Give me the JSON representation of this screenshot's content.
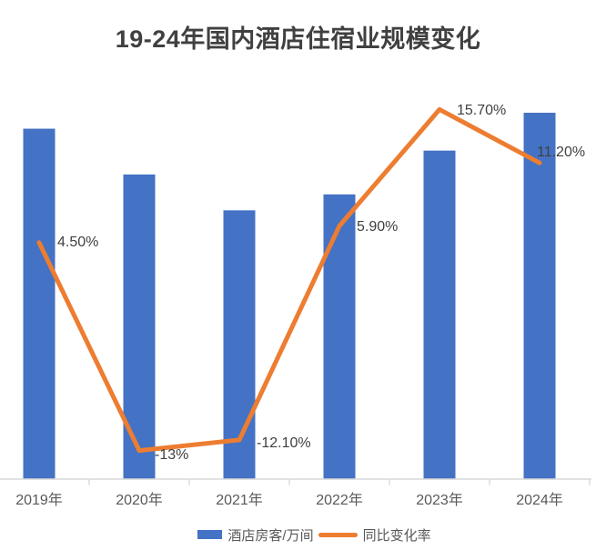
{
  "chart_data": {
    "type": "combo_bar_line",
    "title": "19-24年国内酒店住宿业规模变化",
    "categories": [
      "2019年",
      "2020年",
      "2021年",
      "2022年",
      "2023年",
      "2024年"
    ],
    "series": [
      {
        "name": "酒店房客/万间",
        "type": "bar",
        "axis": "left",
        "color": "#4472C4",
        "values": [
          1760,
          1530,
          1350,
          1430,
          1650,
          1840
        ],
        "values_estimated": true
      },
      {
        "name": "同比变化率",
        "type": "line",
        "axis": "right",
        "color": "#ED7D31",
        "values": [
          4.5,
          -13,
          -12.1,
          5.9,
          15.7,
          11.2
        ],
        "data_labels": [
          "4.50%",
          "-13%",
          "-12.10%",
          "5.90%",
          "15.70%",
          "11.20%"
        ],
        "label_offsets": [
          [
            20,
            -9
          ],
          [
            17,
            -4
          ],
          [
            19,
            -5
          ],
          [
            19,
            -8
          ],
          [
            19,
            -7
          ],
          [
            -3,
            -20
          ]
        ]
      }
    ],
    "ylim_left": [
      0,
      2000
    ],
    "ylim_right": [
      -15.4,
      18.1
    ],
    "gridlines": false,
    "legend_position": "bottom",
    "axis_line_color": "#D9D9D9",
    "text_colors": {
      "title": "#404040",
      "axis_labels": "#595959",
      "data_labels": "#404040",
      "legend": "#595959"
    }
  }
}
